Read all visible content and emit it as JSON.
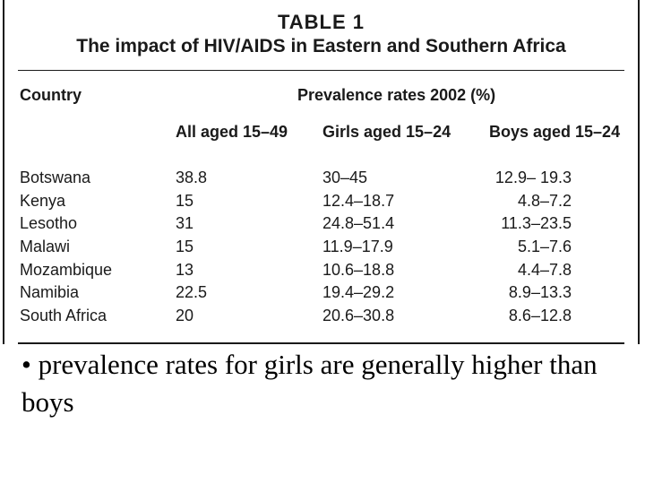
{
  "table": {
    "label": "TABLE 1",
    "title": "The impact of HIV/AIDS in Eastern and Southern Africa",
    "header_country": "Country",
    "header_group": "Prevalence rates 2002 (%)",
    "columns": [
      "All aged 15–49",
      "Girls aged 15–24",
      "Boys aged 15–24"
    ],
    "rows": [
      {
        "country": "Botswana",
        "all": "38.8",
        "girls": "30–45",
        "boys": "12.9– 19.3"
      },
      {
        "country": "Kenya",
        "all": "15",
        "girls": "12.4–18.7",
        "boys": "4.8–7.2"
      },
      {
        "country": "Lesotho",
        "all": "31",
        "girls": "24.8–51.4",
        "boys": "11.3–23.5"
      },
      {
        "country": "Malawi",
        "all": "15",
        "girls": "11.9–17.9",
        "boys": "5.1–7.6"
      },
      {
        "country": "Mozambique",
        "all": "13",
        "girls": "10.6–18.8",
        "boys": "4.4–7.8"
      },
      {
        "country": "Namibia",
        "all": "22.5",
        "girls": "19.4–29.2",
        "boys": "8.9–13.3"
      },
      {
        "country": "South Africa",
        "all": "20",
        "girls": "20.6–30.8",
        "boys": "8.6–12.8"
      }
    ]
  },
  "bullet": "• prevalence rates for girls are generally higher than boys"
}
